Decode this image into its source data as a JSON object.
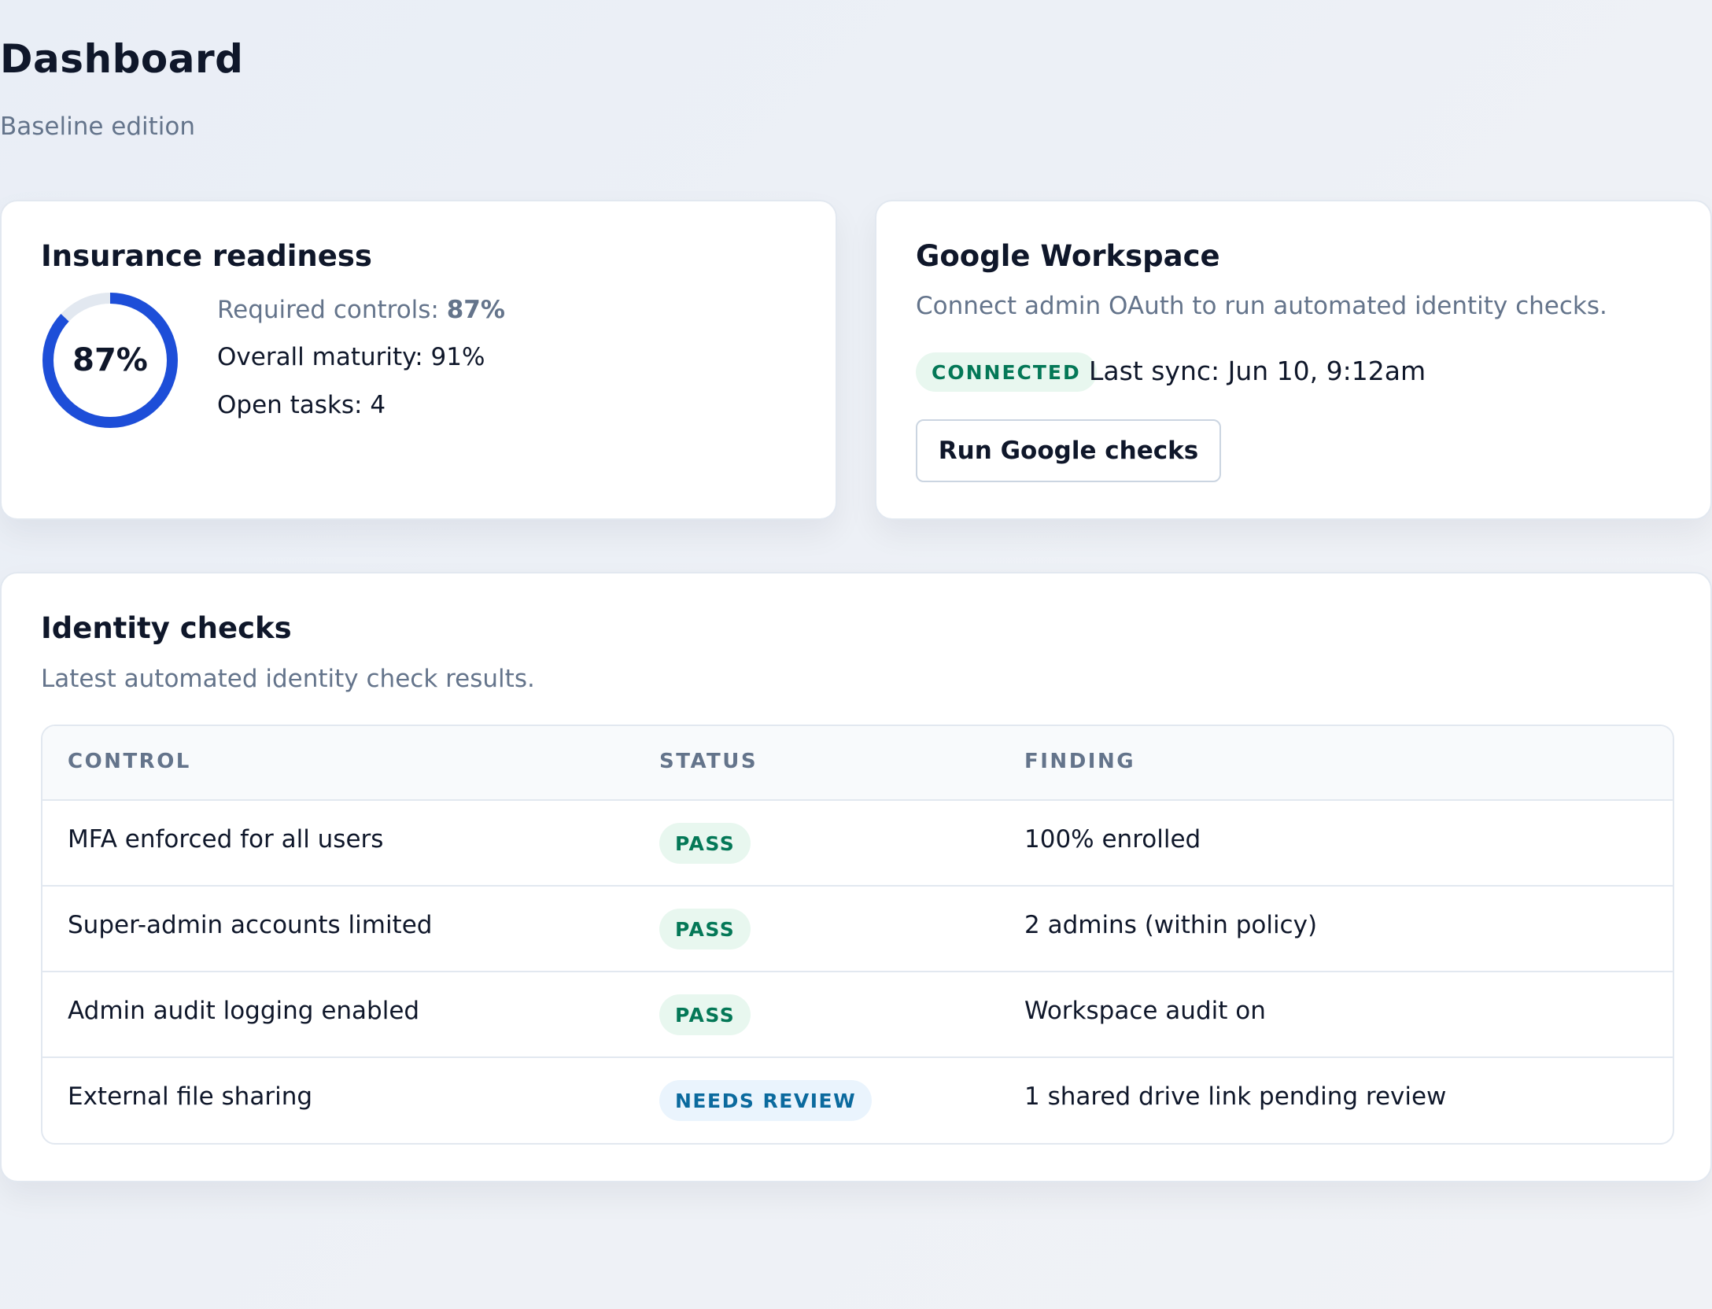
{
  "header": {
    "title": "Dashboard",
    "subtitle": "Baseline edition"
  },
  "readiness": {
    "title": "Insurance readiness",
    "ring_percent": 87,
    "ring_label": "87%",
    "required_label": "Required controls: ",
    "required_value": "87%",
    "maturity": "Overall maturity: 91%",
    "open_tasks": "Open tasks: 4",
    "colors": {
      "ring": "#1d4ed8",
      "track": "#e2e8f0"
    }
  },
  "google": {
    "title": "Google Workspace",
    "description": "Connect admin OAuth to run automated identity checks.",
    "status_badge": "CONNECTED",
    "last_sync": "Last sync: Jun 10, 9:12am",
    "run_button": "Run Google checks"
  },
  "identity": {
    "title": "Identity checks",
    "description": "Latest automated identity check results.",
    "columns": [
      "CONTROL",
      "STATUS",
      "FINDING"
    ],
    "rows": [
      {
        "control": "MFA enforced for all users",
        "status": "PASS",
        "finding": "100% enrolled"
      },
      {
        "control": "Super-admin accounts limited",
        "status": "PASS",
        "finding": "2 admins (within policy)"
      },
      {
        "control": "Admin audit logging enabled",
        "status": "PASS",
        "finding": "Workspace audit on"
      },
      {
        "control": "External file sharing",
        "status": "NEEDS REVIEW",
        "finding": "1 shared drive link pending review"
      }
    ],
    "colors": {
      "pass": "#047857",
      "review": "#0b6a9e"
    }
  }
}
